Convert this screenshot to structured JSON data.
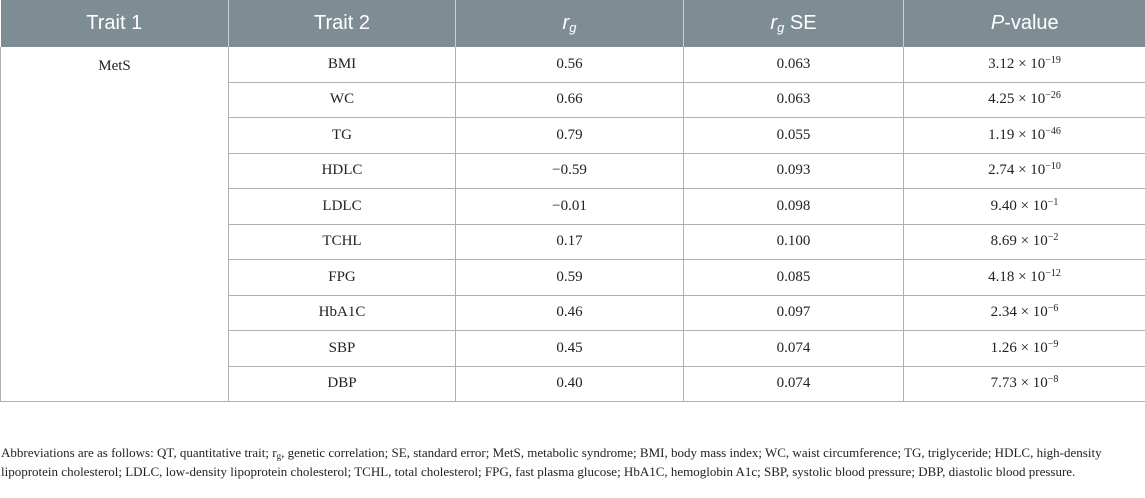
{
  "header": {
    "trait1": "Trait 1",
    "trait2": "Trait 2",
    "rg_base": "r",
    "rg_sub": "g",
    "rgse_base": "r",
    "rgse_sub": "g",
    "rgse_suffix": " SE",
    "p_italic": "P",
    "p_suffix": "-value"
  },
  "trait1_value": "MetS",
  "rows": [
    {
      "trait2": "BMI",
      "rg": "0.56",
      "se": "0.063",
      "p_mant": "3.12 × 10",
      "p_exp": "−19"
    },
    {
      "trait2": "WC",
      "rg": "0.66",
      "se": "0.063",
      "p_mant": "4.25 × 10",
      "p_exp": "−26"
    },
    {
      "trait2": "TG",
      "rg": "0.79",
      "se": "0.055",
      "p_mant": "1.19 × 10",
      "p_exp": "−46"
    },
    {
      "trait2": "HDLC",
      "rg": "−0.59",
      "se": "0.093",
      "p_mant": "2.74 × 10",
      "p_exp": "−10"
    },
    {
      "trait2": "LDLC",
      "rg": "−0.01",
      "se": "0.098",
      "p_mant": "9.40 × 10",
      "p_exp": "−1"
    },
    {
      "trait2": "TCHL",
      "rg": "0.17",
      "se": "0.100",
      "p_mant": "8.69 × 10",
      "p_exp": "−2"
    },
    {
      "trait2": "FPG",
      "rg": "0.59",
      "se": "0.085",
      "p_mant": "4.18 × 10",
      "p_exp": "−12"
    },
    {
      "trait2": "HbA1C",
      "rg": "0.46",
      "se": "0.097",
      "p_mant": "2.34 × 10",
      "p_exp": "−6"
    },
    {
      "trait2": "SBP",
      "rg": "0.45",
      "se": "0.074",
      "p_mant": "1.26 × 10",
      "p_exp": "−9"
    },
    {
      "trait2": "DBP",
      "rg": "0.40",
      "se": "0.074",
      "p_mant": "7.73 × 10",
      "p_exp": "−8"
    }
  ],
  "footnote": {
    "part1": "Abbreviations are as follows: QT, quantitative trait; r",
    "sub": "g",
    "part2": ", genetic correlation; SE, standard error; MetS, metabolic syndrome; BMI, body mass index; WC, waist circumference; TG, triglyceride; HDLC, high-density lipoprotein cholesterol; LDLC, low-density lipoprotein cholesterol; TCHL, total cholesterol; FPG, fast plasma glucose; HbA1C, hemoglobin A1c; SBP, systolic blood pressure; DBP, diastolic blood pressure."
  }
}
